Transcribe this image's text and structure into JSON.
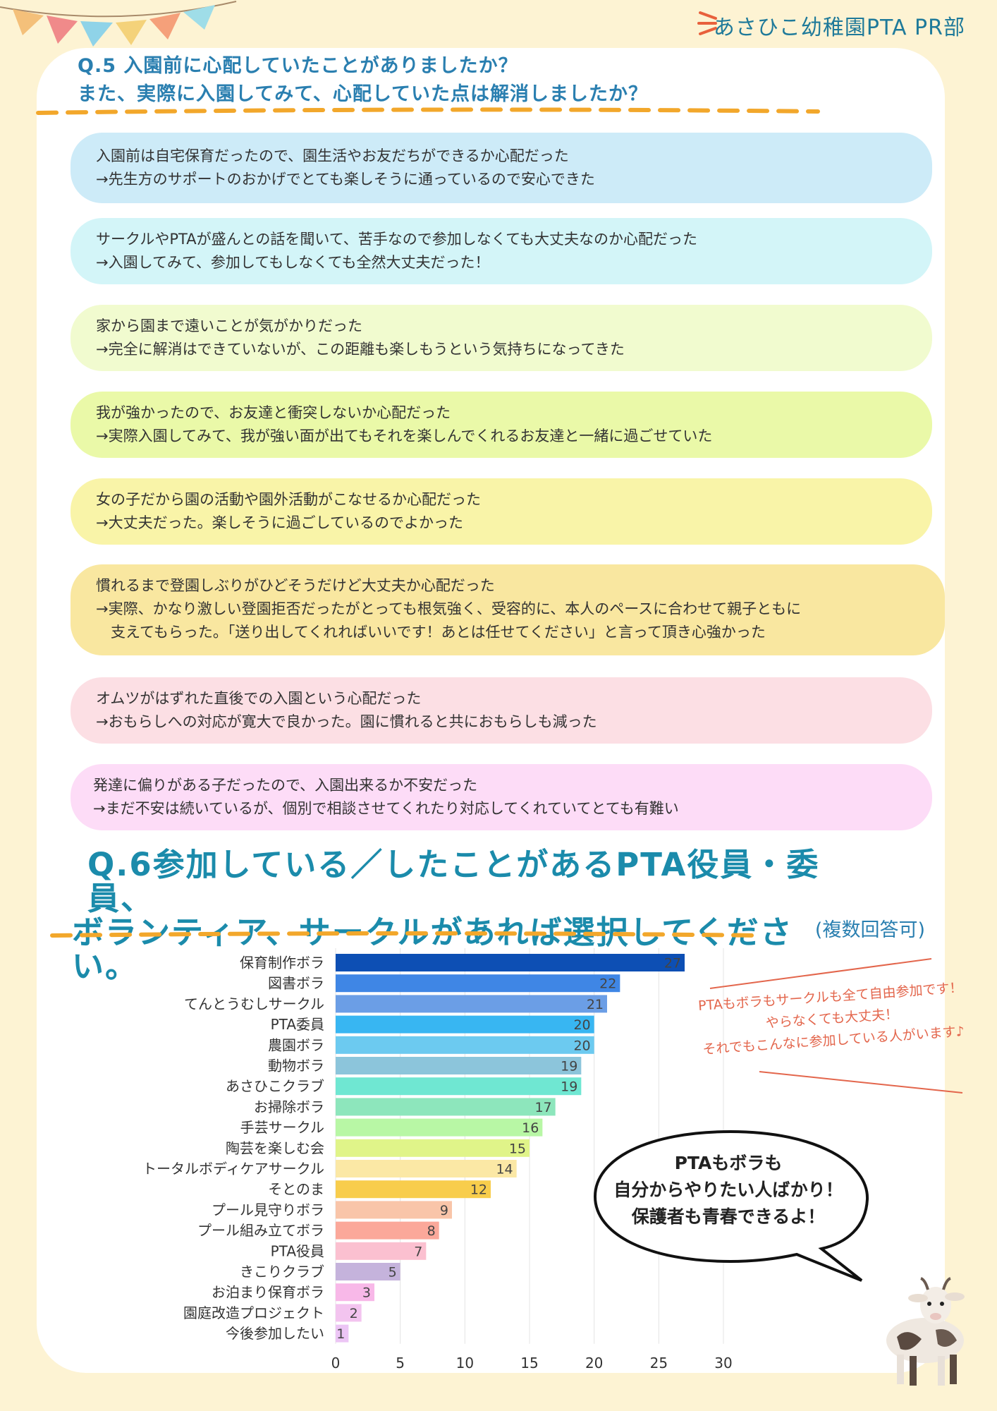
{
  "header": {
    "brand": "あさひこ幼稚園PTA PR部"
  },
  "q5": {
    "title_lines": [
      "Q.5 入園前に心配していたことがありましたか？",
      "また、実際に入園してみて、心配していた点は解消しましたか？"
    ],
    "answers": [
      {
        "color": "#cdebf8",
        "lines": [
          "入園前は自宅保育だったので、園生活やお友だちができるか心配だった",
          "→先生方のサポートのおかげでとても楽しそうに通っているので安心できた"
        ]
      },
      {
        "color": "#d3f5f8",
        "lines": [
          "サークルやPTAが盛んとの話を聞いて、苦手なので参加しなくても大丈夫なのか心配だった",
          "→入園してみて、参加してもしなくても全然大丈夫だった！"
        ]
      },
      {
        "color": "#f1fbcf",
        "lines": [
          "家から園まで遠いことが気がかりだった",
          "→完全に解消はできていないが、この距離も楽しもうという気持ちになってきた"
        ]
      },
      {
        "color": "#eaf9a8",
        "lines": [
          "我が強かったので、お友達と衝突しないか心配だった",
          "→実際入園してみて、我が強い面が出てもそれを楽しんでくれるお友達と一緒に過ごせていた"
        ]
      },
      {
        "color": "#f9f4a8",
        "lines": [
          "女の子だから園の活動や園外活動がこなせるか心配だった",
          "→大丈夫だった。楽しそうに過ごしているのでよかった"
        ]
      },
      {
        "color": "#f9e7a0",
        "lines": [
          "慣れるまで登園しぶりがひどそうだけど大丈夫か心配だった",
          "→実際、かなり激しい登園拒否だったがとっても根気強く、受容的に、本人のペースに合わせて親子ともに",
          "　支えてもらった。「送り出してくれればいいです！あとは任せてください」と言って頂き心強かった"
        ]
      },
      {
        "color": "#fcdfe4",
        "lines": [
          "オムツがはずれた直後での入園という心配だった",
          "→おもらしへの対応が寛大で良かった。園に慣れると共におもらしも減った"
        ]
      },
      {
        "color": "#fddcf7",
        "lines": [
          "発達に偏りがある子だったので、入園出来るか不安だった",
          "→まだ不安は続いているが、個別で相談させてくれたり対応してくれていてとても有難い"
        ]
      }
    ]
  },
  "q6": {
    "title_lines": [
      "Q.6参加している／したことがあるPTA役員・委員、",
      "ボランティア、サークルがあれば選択してください。"
    ],
    "note": "(複数回答可)"
  },
  "chart_data": {
    "type": "bar",
    "orientation": "horizontal",
    "categories": [
      "保育制作ボラ",
      "図書ボラ",
      "てんとうむしサークル",
      "PTA委員",
      "農園ボラ",
      "動物ボラ",
      "あさひこクラブ",
      "お掃除ボラ",
      "手芸サークル",
      "陶芸を楽しむ会",
      "トータルボディケアサークル",
      "そとのま",
      "プール見守りボラ",
      "プール組み立てボラ",
      "PTA役員",
      "きこりクラブ",
      "お泊まり保育ボラ",
      "園庭改造プロジェクト",
      "今後参加したい"
    ],
    "values": [
      27,
      22,
      21,
      20,
      20,
      19,
      19,
      17,
      16,
      15,
      14,
      12,
      9,
      8,
      7,
      5,
      3,
      2,
      1
    ],
    "colors": [
      "#0d4fb4",
      "#3f86e5",
      "#6b9ee6",
      "#38b6f2",
      "#6ccaf0",
      "#8cc5db",
      "#6fe7d2",
      "#8de6bc",
      "#b8f7a5",
      "#e0f489",
      "#fbe8a5",
      "#f8cd4c",
      "#f9c5a9",
      "#fba89a",
      "#fbc0d0",
      "#c5b3dc",
      "#f8b8e8",
      "#f3c4ef",
      "#ecc5f5"
    ],
    "value_label_colors": [
      "#ffffff",
      "#ffffff",
      "#ffffff",
      "#222222",
      "#222222",
      "#222222",
      "#222222",
      "#222222",
      "#222222",
      "#222222",
      "#222222",
      "#222222",
      "#222222",
      "#222222",
      "#222222",
      "#222222",
      "#222222",
      "#222222",
      "#222222"
    ],
    "xlim": [
      0,
      30
    ],
    "xticks": [
      0,
      5,
      10,
      15,
      20,
      25,
      30
    ],
    "grid": true
  },
  "side_note": {
    "lines": [
      "PTAもボラもサークルも全て自由参加です！",
      "やらなくても大丈夫！",
      "それでもこんなに参加している人がいます♪"
    ]
  },
  "bubble": {
    "lines": [
      "PTAもボラも",
      "自分からやりたい人ばかり！",
      "保護者も青春できるよ！"
    ]
  }
}
